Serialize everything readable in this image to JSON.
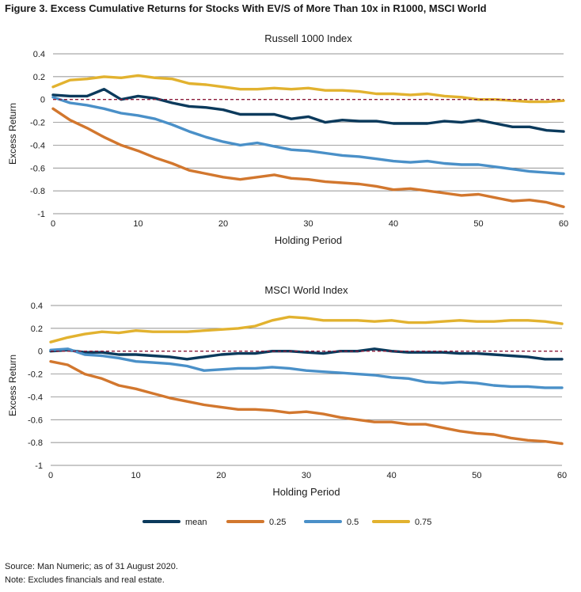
{
  "figure_title": "Figure 3. Excess Cumulative Returns for Stocks With EV/S of More Than 10x in R1000, MSCI World",
  "footer": {
    "source": "Source: Man Numeric; as of 31 August 2020.",
    "note": "Note: Excludes financials and real estate."
  },
  "legend": [
    {
      "label": "mean",
      "color": "#0b3a5c"
    },
    {
      "label": "0.25",
      "color": "#d2772e"
    },
    {
      "label": "0.5",
      "color": "#4a90c8"
    },
    {
      "label": "0.75",
      "color": "#e2b22f"
    }
  ],
  "chart_data": [
    {
      "type": "line",
      "title": "Russell 1000 Index",
      "xlabel": "Holding Period",
      "ylabel": "Excess Return",
      "xlim": [
        0,
        60
      ],
      "ylim": [
        -1,
        0.4
      ],
      "x_ticks": [
        "0",
        "10",
        "20",
        "30",
        "40",
        "50",
        "60"
      ],
      "y_ticks": [
        "0.4",
        "0.2",
        "0",
        "-0.2",
        "-0.4",
        "-0.6",
        "-0.8",
        "-1"
      ],
      "grid": true,
      "reference_line": 0,
      "x": [
        0,
        2,
        4,
        6,
        8,
        10,
        12,
        14,
        16,
        18,
        20,
        22,
        24,
        26,
        28,
        30,
        32,
        34,
        36,
        38,
        40,
        42,
        44,
        46,
        48,
        50,
        52,
        54,
        56,
        58,
        60
      ],
      "series": [
        {
          "name": "mean",
          "color": "#0b3a5c",
          "values": [
            0.04,
            0.03,
            0.03,
            0.09,
            0.0,
            0.03,
            0.01,
            -0.03,
            -0.06,
            -0.07,
            -0.09,
            -0.13,
            -0.13,
            -0.13,
            -0.17,
            -0.15,
            -0.2,
            -0.18,
            -0.19,
            -0.19,
            -0.21,
            -0.21,
            -0.21,
            -0.19,
            -0.2,
            -0.18,
            -0.21,
            -0.24,
            -0.24,
            -0.27,
            -0.28
          ]
        },
        {
          "name": "0.25",
          "color": "#d2772e",
          "values": [
            -0.08,
            -0.18,
            -0.25,
            -0.33,
            -0.4,
            -0.45,
            -0.51,
            -0.56,
            -0.62,
            -0.65,
            -0.68,
            -0.7,
            -0.68,
            -0.66,
            -0.69,
            -0.7,
            -0.72,
            -0.73,
            -0.74,
            -0.76,
            -0.79,
            -0.78,
            -0.8,
            -0.82,
            -0.84,
            -0.83,
            -0.86,
            -0.89,
            -0.88,
            -0.9,
            -0.94
          ]
        },
        {
          "name": "0.5",
          "color": "#4a90c8",
          "values": [
            0.02,
            -0.03,
            -0.05,
            -0.08,
            -0.12,
            -0.14,
            -0.17,
            -0.22,
            -0.28,
            -0.33,
            -0.37,
            -0.4,
            -0.38,
            -0.41,
            -0.44,
            -0.45,
            -0.47,
            -0.49,
            -0.5,
            -0.52,
            -0.54,
            -0.55,
            -0.54,
            -0.56,
            -0.57,
            -0.57,
            -0.59,
            -0.61,
            -0.63,
            -0.64,
            -0.65
          ]
        },
        {
          "name": "0.75",
          "color": "#e2b22f",
          "values": [
            0.11,
            0.17,
            0.18,
            0.2,
            0.19,
            0.21,
            0.19,
            0.18,
            0.14,
            0.13,
            0.11,
            0.09,
            0.09,
            0.1,
            0.09,
            0.1,
            0.08,
            0.08,
            0.07,
            0.05,
            0.05,
            0.04,
            0.05,
            0.03,
            0.02,
            0.0,
            0.0,
            -0.01,
            -0.02,
            -0.02,
            -0.01
          ]
        }
      ]
    },
    {
      "type": "line",
      "title": "MSCI World Index",
      "xlabel": "Holding Period",
      "ylabel": "Excess Return",
      "xlim": [
        0,
        60
      ],
      "ylim": [
        -1,
        0.4
      ],
      "x_ticks": [
        "0",
        "10",
        "20",
        "30",
        "40",
        "50",
        "60"
      ],
      "y_ticks": [
        "0.4",
        "0.2",
        "0",
        "-0.2",
        "-0.4",
        "-0.6",
        "-0.8",
        "-1"
      ],
      "grid": true,
      "reference_line": 0,
      "x": [
        0,
        2,
        4,
        6,
        8,
        10,
        12,
        14,
        16,
        18,
        20,
        22,
        24,
        26,
        28,
        30,
        32,
        34,
        36,
        38,
        40,
        42,
        44,
        46,
        48,
        50,
        52,
        54,
        56,
        58,
        60
      ],
      "series": [
        {
          "name": "mean",
          "color": "#0b3a5c",
          "values": [
            0.0,
            0.01,
            -0.01,
            -0.01,
            -0.03,
            -0.03,
            -0.04,
            -0.05,
            -0.07,
            -0.05,
            -0.03,
            -0.02,
            -0.02,
            0.0,
            0.0,
            -0.01,
            -0.02,
            0.0,
            0.0,
            0.02,
            0.0,
            -0.01,
            -0.01,
            -0.01,
            -0.02,
            -0.02,
            -0.03,
            -0.04,
            -0.05,
            -0.07,
            -0.07
          ]
        },
        {
          "name": "0.25",
          "color": "#d2772e",
          "values": [
            -0.09,
            -0.12,
            -0.2,
            -0.24,
            -0.3,
            -0.33,
            -0.37,
            -0.41,
            -0.44,
            -0.47,
            -0.49,
            -0.51,
            -0.51,
            -0.52,
            -0.54,
            -0.53,
            -0.55,
            -0.58,
            -0.6,
            -0.62,
            -0.62,
            -0.64,
            -0.64,
            -0.67,
            -0.7,
            -0.72,
            -0.73,
            -0.76,
            -0.78,
            -0.79,
            -0.81
          ]
        },
        {
          "name": "0.5",
          "color": "#4a90c8",
          "values": [
            0.01,
            0.02,
            -0.03,
            -0.04,
            -0.06,
            -0.09,
            -0.1,
            -0.11,
            -0.13,
            -0.17,
            -0.16,
            -0.15,
            -0.15,
            -0.14,
            -0.15,
            -0.17,
            -0.18,
            -0.19,
            -0.2,
            -0.21,
            -0.23,
            -0.24,
            -0.27,
            -0.28,
            -0.27,
            -0.28,
            -0.3,
            -0.31,
            -0.31,
            -0.32,
            -0.32
          ]
        },
        {
          "name": "0.75",
          "color": "#e2b22f",
          "values": [
            0.08,
            0.12,
            0.15,
            0.17,
            0.16,
            0.18,
            0.17,
            0.17,
            0.17,
            0.18,
            0.19,
            0.2,
            0.22,
            0.27,
            0.3,
            0.29,
            0.27,
            0.27,
            0.27,
            0.26,
            0.27,
            0.25,
            0.25,
            0.26,
            0.27,
            0.26,
            0.26,
            0.27,
            0.27,
            0.26,
            0.24
          ]
        }
      ]
    }
  ]
}
